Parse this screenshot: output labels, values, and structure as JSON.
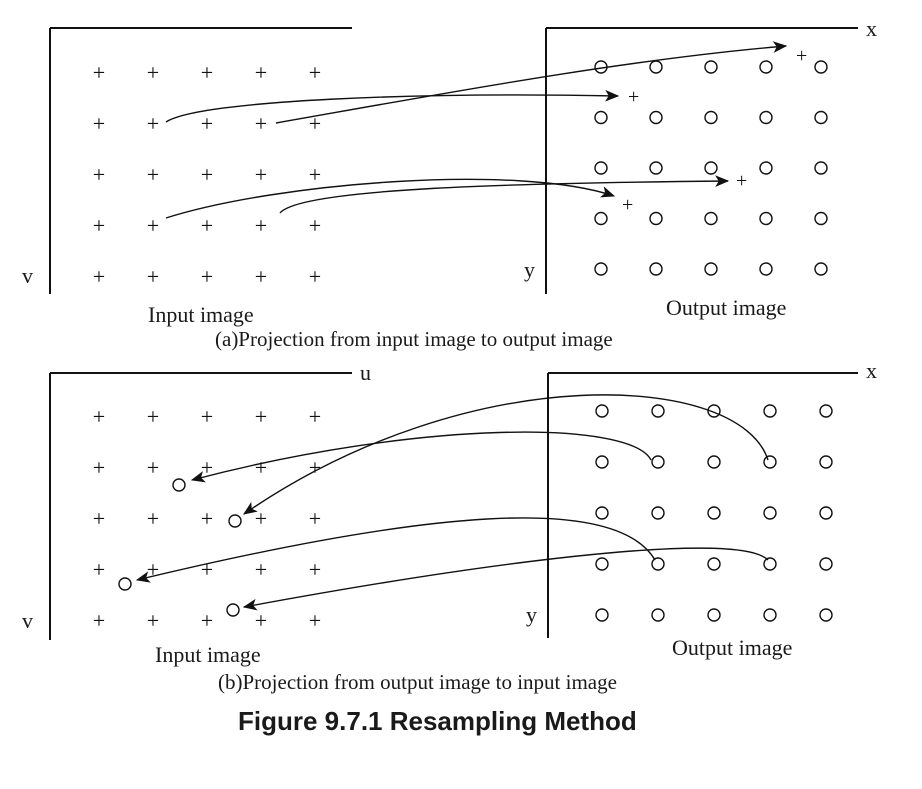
{
  "figure_title": "Figure 9.7.1 Resampling Method",
  "panel_a": {
    "caption": "(a)Projection from input image to output image",
    "input_label": "Input image",
    "output_label": "Output image",
    "input_axis_v": "v",
    "output_axis_x": "x",
    "output_axis_y": "y",
    "input_marker": "+",
    "output_marker": "o",
    "grid_rows": 5,
    "grid_cols": 5
  },
  "panel_b": {
    "caption": "(b)Projection from output image to input image",
    "input_label": "Input image",
    "output_label": "Output image",
    "input_axis_u": "u",
    "input_axis_v": "v",
    "output_axis_x": "x",
    "output_axis_y": "y",
    "input_marker": "+",
    "output_marker": "o",
    "grid_rows": 5,
    "grid_cols": 5
  }
}
